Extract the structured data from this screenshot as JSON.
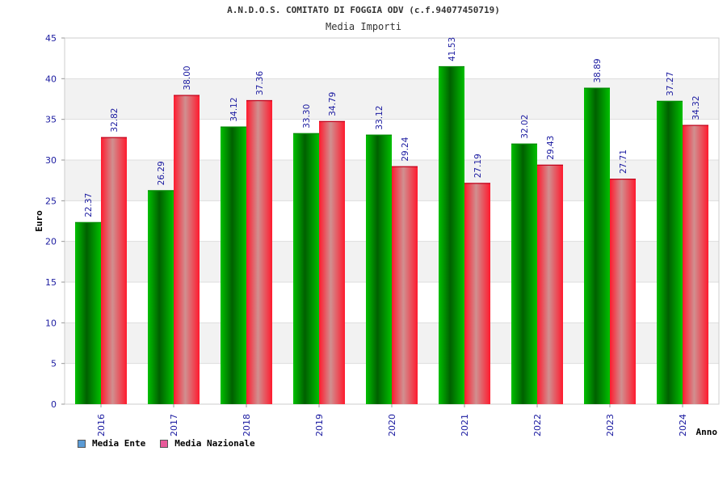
{
  "chart_data": {
    "type": "bar",
    "title": "A.N.D.O.S. COMITATO DI FOGGIA ODV (c.f.94077450719)",
    "subtitle": "Media Importi",
    "xlabel": "Anno",
    "ylabel": "Euro",
    "ylim": [
      0,
      45
    ],
    "yticks": [
      "0",
      "5",
      "10",
      "15",
      "20",
      "25",
      "30",
      "35",
      "40",
      "45"
    ],
    "grid": true,
    "legend_position": "bottom-left",
    "categories": [
      "2016",
      "2017",
      "2018",
      "2019",
      "2020",
      "2021",
      "2022",
      "2023",
      "2024"
    ],
    "series": [
      {
        "name": "Media Ente",
        "values": [
          22.37,
          26.29,
          34.12,
          33.3,
          33.12,
          41.53,
          32.02,
          38.89,
          37.27
        ],
        "labels": [
          "22.37",
          "26.29",
          "34.12",
          "33.30",
          "33.12",
          "41.53",
          "32.02",
          "38.89",
          "37.27"
        ],
        "color": "#00b400",
        "legend_color": "#5b9bd5"
      },
      {
        "name": "Media Nazionale",
        "values": [
          32.82,
          38.0,
          37.36,
          34.79,
          29.24,
          27.19,
          29.43,
          27.71,
          34.32
        ],
        "labels": [
          "32.82",
          "38.00",
          "37.36",
          "34.79",
          "29.24",
          "27.19",
          "29.43",
          "27.71",
          "34.32"
        ],
        "color": "#ff1e3c",
        "legend_color": "#e85a9a"
      }
    ]
  },
  "colors": {
    "band_light": "#ffffff",
    "band_dark": "#f2f2f2",
    "tick_label": "#1a1aa0",
    "value_label": "#1a1aa0",
    "axis_title": "#000000"
  }
}
